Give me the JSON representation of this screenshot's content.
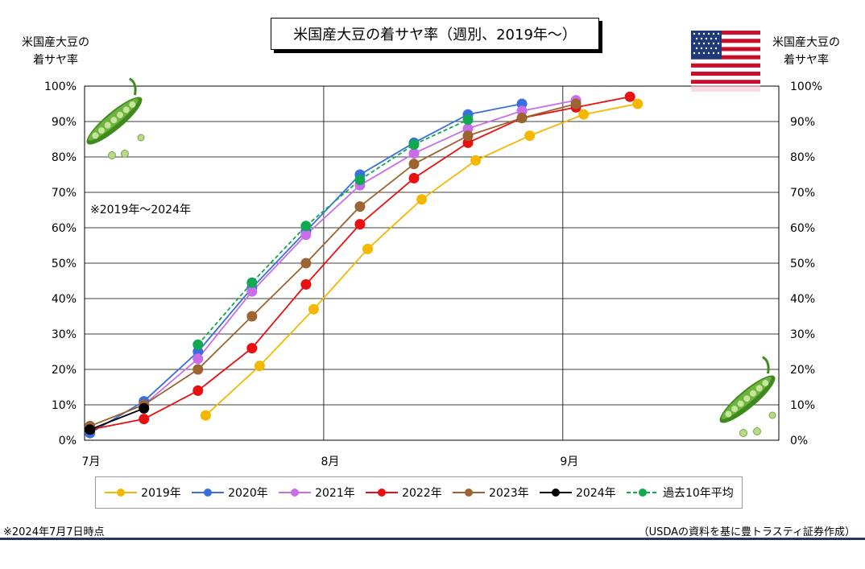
{
  "title": "米国産大豆の着サヤ率（週別、2019年～）",
  "left_axis_title_line1": "米国産大豆の",
  "left_axis_title_line2": "着サヤ率",
  "right_axis_title_line1": "米国産大豆の",
  "right_axis_title_line2": "着サヤ率",
  "note": "※2019年～2024年",
  "footnote": "※2024年7月7日時点",
  "source": "（USDAの資料を基に豊トラスティ証券作成）",
  "icons": {
    "flag": "us-flag-icon",
    "pea": "pea-pod-icon"
  },
  "chart_data": {
    "type": "line",
    "x_unit": "days since Jul 1",
    "xlim": [
      0,
      90
    ],
    "ylim": [
      0,
      100
    ],
    "y_ticks": [
      0,
      10,
      20,
      30,
      40,
      50,
      60,
      70,
      80,
      90,
      100
    ],
    "y_tick_labels": [
      "0%",
      "10%",
      "20%",
      "30%",
      "40%",
      "50%",
      "60%",
      "70%",
      "80%",
      "90%",
      "100%"
    ],
    "x_ticks": [
      0,
      31,
      62
    ],
    "x_tick_labels": [
      "7月",
      "8月",
      "9月"
    ],
    "grid": true,
    "series": [
      {
        "name": "2019年",
        "color": "#f5b800",
        "dashed": false,
        "points": [
          [
            15.7,
            7
          ],
          [
            22.7,
            21
          ],
          [
            29.7,
            37
          ],
          [
            36.7,
            54
          ],
          [
            43.7,
            68
          ],
          [
            50.7,
            79
          ],
          [
            57.7,
            86
          ],
          [
            64.7,
            92
          ],
          [
            71.7,
            95
          ]
        ]
      },
      {
        "name": "2020年",
        "color": "#3a6fe0",
        "dashed": false,
        "points": [
          [
            0.7,
            2
          ],
          [
            7.7,
            11
          ],
          [
            14.7,
            25
          ],
          [
            21.7,
            43
          ],
          [
            28.7,
            59
          ],
          [
            35.7,
            75
          ],
          [
            42.7,
            84
          ],
          [
            49.7,
            92
          ],
          [
            56.7,
            95
          ]
        ]
      },
      {
        "name": "2021年",
        "color": "#c86ee8",
        "dashed": false,
        "points": [
          [
            7.7,
            10
          ],
          [
            14.7,
            23
          ],
          [
            21.7,
            42
          ],
          [
            28.7,
            58
          ],
          [
            35.7,
            72
          ],
          [
            42.7,
            81
          ],
          [
            49.7,
            88
          ],
          [
            56.7,
            93
          ],
          [
            63.7,
            96
          ]
        ]
      },
      {
        "name": "2022年",
        "color": "#e81010",
        "dashed": false,
        "points": [
          [
            0.7,
            3
          ],
          [
            7.7,
            6
          ],
          [
            14.7,
            14
          ],
          [
            21.7,
            26
          ],
          [
            28.7,
            44
          ],
          [
            35.7,
            61
          ],
          [
            42.7,
            74
          ],
          [
            49.7,
            84
          ],
          [
            56.7,
            91
          ],
          [
            63.7,
            94
          ],
          [
            70.7,
            97
          ]
        ]
      },
      {
        "name": "2023年",
        "color": "#9c6430",
        "dashed": false,
        "points": [
          [
            0.7,
            4
          ],
          [
            7.7,
            10
          ],
          [
            14.7,
            20
          ],
          [
            21.7,
            35
          ],
          [
            28.7,
            50
          ],
          [
            35.7,
            66
          ],
          [
            42.7,
            78
          ],
          [
            49.7,
            86
          ],
          [
            56.7,
            91
          ],
          [
            63.7,
            95
          ]
        ]
      },
      {
        "name": "2024年",
        "color": "#000000",
        "dashed": false,
        "points": [
          [
            0.7,
            3
          ],
          [
            7.7,
            9
          ]
        ]
      },
      {
        "name": "過去10年平均",
        "color": "#10a850",
        "dashed": true,
        "points": [
          [
            14.7,
            27
          ],
          [
            21.7,
            44.5
          ],
          [
            28.7,
            60.5
          ],
          [
            35.7,
            73.5
          ],
          [
            42.7,
            83.5
          ],
          [
            49.7,
            90.5
          ]
        ]
      }
    ]
  }
}
